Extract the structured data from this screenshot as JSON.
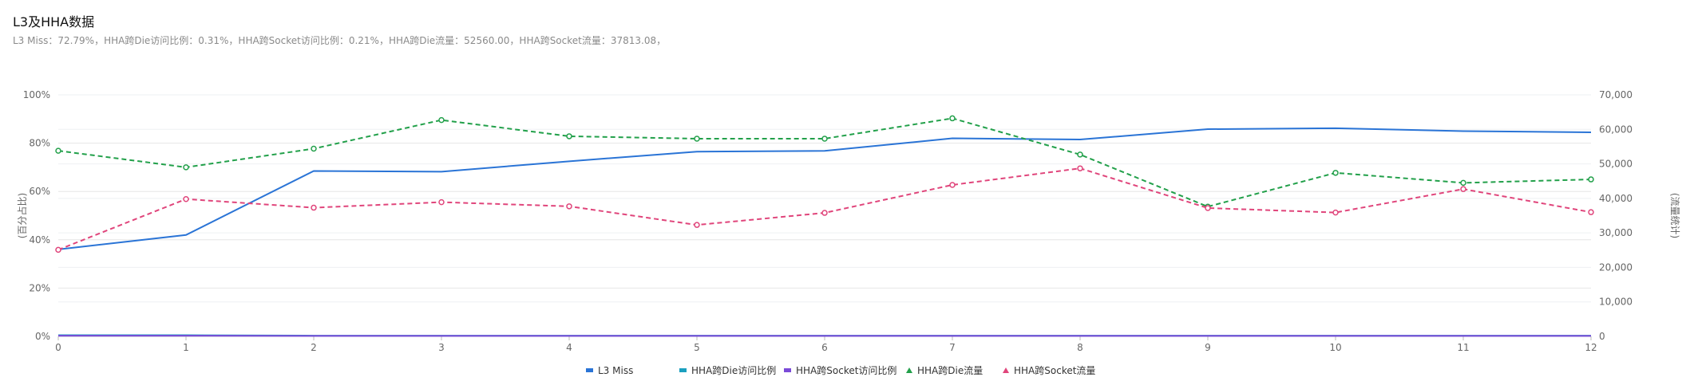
{
  "header": {
    "title": "L3及HHA数据",
    "subtitle": "L3 Miss：72.79%，HHA跨Die访问比例：0.31%，HHA跨Socket访问比例：0.21%，HHA跨Die流量：52560.00，HHA跨Socket流量：37813.08，"
  },
  "chart_data": {
    "type": "line",
    "x": [
      0,
      1,
      2,
      3,
      4,
      5,
      6,
      7,
      8,
      9,
      10,
      11,
      12
    ],
    "y_left": {
      "label": "(百分占比)",
      "ticks": [
        "0%",
        "20%",
        "40%",
        "60%",
        "80%",
        "100%"
      ],
      "range": [
        0,
        100
      ]
    },
    "y_right": {
      "label": "(流量统计)",
      "ticks": [
        "0",
        "10,000",
        "20,000",
        "30,000",
        "40,000",
        "50,000",
        "60,000",
        "70,000"
      ],
      "range": [
        0,
        70000
      ]
    },
    "grid": true,
    "legend_position": "bottom-center",
    "series": [
      {
        "name": "L3 Miss",
        "axis": "left",
        "color": "#2a74d6",
        "dashed": false,
        "markers": false,
        "values": [
          36,
          42,
          68.5,
          68.2,
          72.5,
          76.5,
          76.8,
          82,
          81.5,
          85.8,
          86.2,
          85,
          84.5
        ]
      },
      {
        "name": "HHA跨Die访问比例",
        "axis": "left",
        "color": "#1a9fbf",
        "dashed": false,
        "markers": false,
        "values": [
          0.5,
          0.5,
          0.3,
          0.3,
          0.3,
          0.3,
          0.3,
          0.3,
          0.3,
          0.3,
          0.3,
          0.3,
          0.3
        ]
      },
      {
        "name": "HHA跨Socket访问比例",
        "axis": "left",
        "color": "#7b4ad8",
        "dashed": false,
        "markers": false,
        "values": [
          0.3,
          0.3,
          0.2,
          0.2,
          0.2,
          0.2,
          0.2,
          0.2,
          0.2,
          0.2,
          0.2,
          0.2,
          0.2
        ]
      },
      {
        "name": "HHA跨Die流量",
        "axis": "right",
        "color": "#22a04a",
        "dashed": true,
        "markers": true,
        "values": [
          53800,
          49000,
          54400,
          62700,
          58000,
          57300,
          57300,
          63200,
          52700,
          37600,
          47400,
          44500,
          45500
        ]
      },
      {
        "name": "HHA跨Socket流量",
        "axis": "right",
        "color": "#e0457b",
        "dashed": true,
        "markers": true,
        "values": [
          25100,
          39800,
          37300,
          38900,
          37700,
          32300,
          35800,
          43900,
          48700,
          37200,
          35900,
          42700,
          36000
        ]
      }
    ]
  }
}
